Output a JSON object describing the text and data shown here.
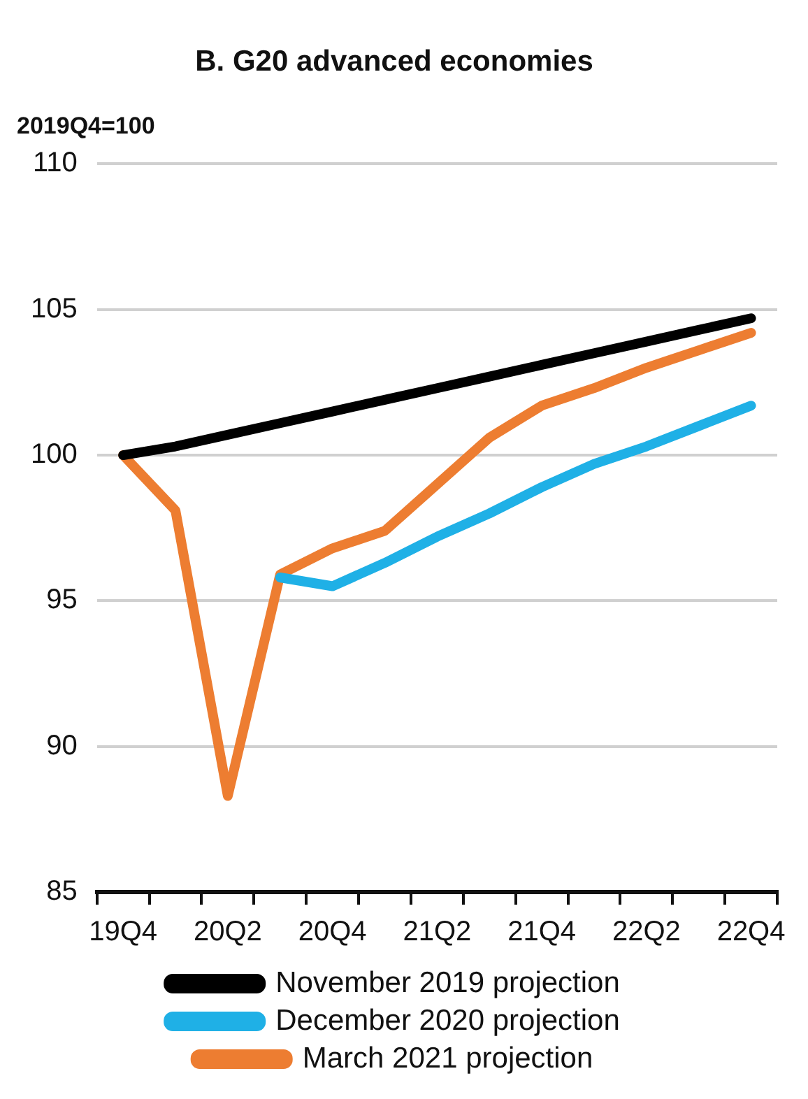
{
  "chart_data": {
    "type": "line",
    "title": "B. G20 advanced economies",
    "ylabel": "2019Q4=100",
    "categories": [
      "19Q4",
      null,
      "20Q2",
      null,
      "20Q4",
      null,
      "21Q2",
      null,
      "21Q4",
      null,
      "22Q2",
      null,
      "22Q4"
    ],
    "series": [
      {
        "name": "November 2019 projection",
        "color": "#000000",
        "values": [
          100,
          100.3,
          100.7,
          101.1,
          101.5,
          101.9,
          102.3,
          102.7,
          103.1,
          103.5,
          103.9,
          104.3,
          104.7
        ]
      },
      {
        "name": "December 2020 projection",
        "color": "#1fb0e6",
        "values": [
          null,
          null,
          null,
          95.8,
          95.5,
          96.3,
          97.2,
          98.0,
          98.9,
          99.7,
          100.3,
          101.0,
          101.7
        ]
      },
      {
        "name": "March 2021 projection",
        "color": "#ed7d31",
        "values": [
          100,
          98.1,
          88.3,
          95.9,
          96.8,
          97.4,
          99.0,
          100.6,
          101.7,
          102.3,
          103.0,
          103.6,
          104.2
        ]
      }
    ],
    "ylim": [
      85,
      110
    ],
    "yticks": [
      85,
      90,
      95,
      100,
      105,
      110
    ],
    "grid": "y",
    "legend": "bottom",
    "marker": "none",
    "line_style": "solid"
  }
}
